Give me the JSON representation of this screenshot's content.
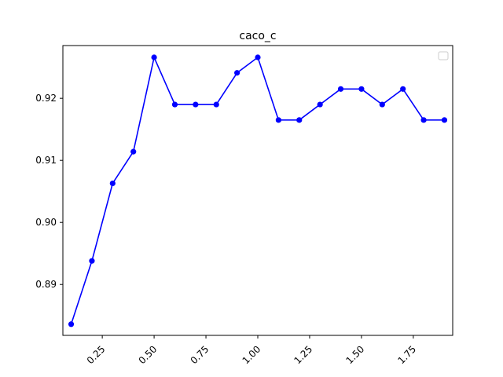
{
  "chart_data": {
    "type": "line",
    "title": "caco_c",
    "xlabel": "",
    "ylabel": "",
    "xlim": [
      0.06,
      1.94
    ],
    "ylim": [
      0.8818,
      0.9285
    ],
    "xticks": [
      "0.25",
      "0.50",
      "0.75",
      "1.00",
      "1.25",
      "1.50",
      "1.75"
    ],
    "xtick_values": [
      0.25,
      0.5,
      0.75,
      1.0,
      1.25,
      1.5,
      1.75
    ],
    "yticks": [
      "0.89",
      "0.90",
      "0.91",
      "0.92"
    ],
    "ytick_values": [
      0.89,
      0.9,
      0.91,
      0.92
    ],
    "grid": false,
    "legend": "top-right (empty)",
    "series": [
      {
        "name": "",
        "color": "#0000ff",
        "marker": "circle",
        "x": [
          0.1,
          0.2,
          0.3,
          0.4,
          0.5,
          0.6,
          0.7,
          0.8,
          0.9,
          1.0,
          1.1,
          1.2,
          1.3,
          1.4,
          1.5,
          1.6,
          1.7,
          1.8,
          1.9
        ],
        "y": [
          0.8836,
          0.8938,
          0.9063,
          0.9114,
          0.9266,
          0.919,
          0.919,
          0.919,
          0.9241,
          0.9266,
          0.9165,
          0.9165,
          0.919,
          0.9215,
          0.9215,
          0.919,
          0.9215,
          0.9165,
          0.9165
        ]
      }
    ]
  }
}
